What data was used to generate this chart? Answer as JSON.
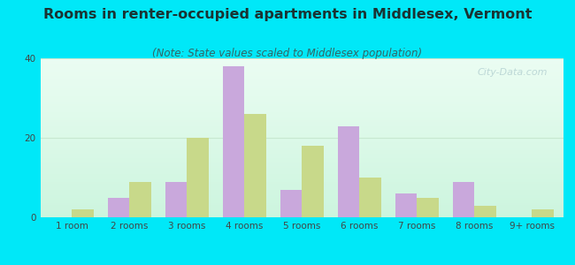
{
  "title": "Rooms in renter-occupied apartments in Middlesex, Vermont",
  "subtitle": "(Note: State values scaled to Middlesex population)",
  "categories": [
    "1 room",
    "2 rooms",
    "3 rooms",
    "4 rooms",
    "5 rooms",
    "6 rooms",
    "7 rooms",
    "8 rooms",
    "9+ rooms"
  ],
  "middlesex_values": [
    0,
    5,
    9,
    38,
    7,
    23,
    6,
    9,
    0
  ],
  "vermont_values": [
    2,
    9,
    20,
    26,
    18,
    10,
    5,
    3,
    2
  ],
  "middlesex_color": "#c9a8dc",
  "vermont_color": "#c8d98a",
  "background_outer": "#00e8f8",
  "ylim": [
    0,
    40
  ],
  "yticks": [
    0,
    20,
    40
  ],
  "bar_width": 0.38,
  "title_fontsize": 11.5,
  "subtitle_fontsize": 8.5,
  "tick_fontsize": 7.5,
  "legend_fontsize": 9,
  "watermark_text": "City-Data.com",
  "watermark_color": "#b8d4d4",
  "grid_color": "#c8e8d0"
}
